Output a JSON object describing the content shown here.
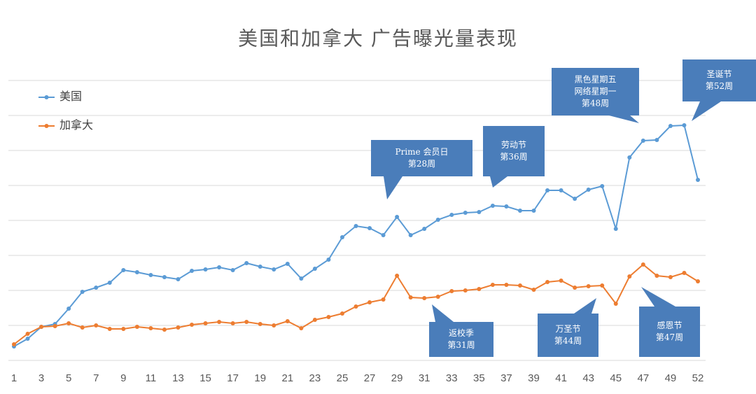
{
  "chart_data": {
    "type": "line",
    "title": "美国和加拿大 广告曝光量表现",
    "categories": [
      1,
      null,
      3,
      null,
      5,
      null,
      7,
      null,
      9,
      null,
      11,
      null,
      13,
      null,
      15,
      null,
      17,
      null,
      19,
      null,
      21,
      null,
      23,
      null,
      25,
      null,
      27,
      null,
      29,
      null,
      31,
      null,
      33,
      null,
      35,
      null,
      37,
      null,
      39,
      null,
      41,
      null,
      43,
      null,
      45,
      null,
      47,
      null,
      49,
      null,
      52
    ],
    "series": [
      {
        "name": "美国",
        "color": "#5b9bd5",
        "values": [
          0.4,
          0.62,
          0.96,
          1.04,
          1.48,
          1.96,
          2.08,
          2.22,
          2.58,
          2.52,
          2.44,
          2.38,
          2.32,
          2.56,
          2.6,
          2.66,
          2.58,
          2.78,
          2.68,
          2.6,
          2.76,
          2.34,
          2.62,
          2.88,
          3.52,
          3.84,
          3.78,
          3.58,
          4.1,
          3.58,
          3.76,
          4.02,
          4.16,
          4.22,
          4.24,
          4.42,
          4.4,
          4.28,
          4.28,
          4.86,
          4.86,
          4.62,
          4.88,
          4.98,
          3.76,
          5.8,
          6.28,
          6.3,
          6.7,
          6.72,
          5.16
        ]
      },
      {
        "name": "加拿大",
        "color": "#ed7d31",
        "values": [
          0.46,
          0.76,
          0.96,
          0.98,
          1.06,
          0.94,
          1.0,
          0.9,
          0.9,
          0.96,
          0.92,
          0.88,
          0.94,
          1.02,
          1.06,
          1.1,
          1.06,
          1.1,
          1.04,
          1.0,
          1.12,
          0.92,
          1.16,
          1.24,
          1.34,
          1.54,
          1.66,
          1.74,
          2.42,
          1.8,
          1.78,
          1.82,
          1.98,
          2.0,
          2.04,
          2.16,
          2.16,
          2.14,
          2.02,
          2.24,
          2.28,
          2.08,
          2.12,
          2.14,
          1.62,
          2.4,
          2.74,
          2.42,
          2.38,
          2.5,
          2.26
        ]
      }
    ],
    "ylim": [
      0,
      8
    ],
    "yticks": [
      0,
      1,
      2,
      3,
      4,
      5,
      6,
      7,
      8
    ],
    "ytick_labels": false,
    "grid": true,
    "legend": "upper left",
    "annotation_color": "#4a7dba",
    "annotations": [
      {
        "lines": [
          "Prime 会员日",
          "第28周"
        ]
      },
      {
        "lines": [
          "劳动节",
          "第36周"
        ]
      },
      {
        "lines": [
          "黑色星期五",
          "网络星期一",
          "第48周"
        ]
      },
      {
        "lines": [
          "圣诞节",
          "第52周"
        ]
      },
      {
        "lines": [
          "返校季",
          "第31周"
        ]
      },
      {
        "lines": [
          "万圣节",
          "第44周"
        ]
      },
      {
        "lines": [
          "感恩节",
          "第47周"
        ]
      }
    ]
  }
}
